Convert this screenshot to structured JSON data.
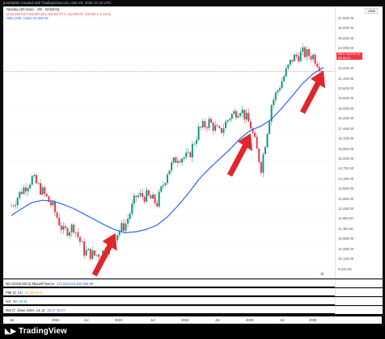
{
  "topbar": {
    "text": "jrosst5834 created with TradingView.com, Mar 20, 2026 17:12 UTC"
  },
  "legend": {
    "title": "Nasdaq 100 Index · 1W · NASDAQ",
    "ohlc": "O 24,267.04  H 24,307.53  L 24,022.77  C 24,076.70  −278.00 (−1.14%)",
    "sma": "SMA (200, close)  24,360.05"
  },
  "axis": {
    "currency": "USD",
    "ticks": [
      "27,000.00",
      "26,000.00",
      "25,000.00",
      "24,000.00",
      "23,000.00",
      "22,000.00",
      "21,400.00",
      "20,600.00",
      "19,800.00",
      "19,000.00",
      "18,200.00",
      "17,450.00",
      "16,700.00",
      "15,950.00",
      "15,200.00",
      "14,750.00",
      "14,150.00",
      "13,550.00",
      "12,950.00",
      "12,450.00",
      "11,950.00",
      "11,450.00",
      "10,950.00",
      "10,490.00",
      "10,130.00",
      "9,610.00"
    ],
    "price_tag": {
      "label": "NDX",
      "value": "24,076.70",
      "sub": "04:18:11"
    }
  },
  "panes": [
    {
      "name": "M2 Global M2 by MiguelFinance",
      "value": "119,640,512,450,256.96"
    },
    {
      "name": "PMI (3, 14)",
      "value": "52.48  52.48"
    },
    {
      "name": "Vol",
      "value": "857.49 M"
    },
    {
      "name": "RSI (7, close, EMA, 14, 2)",
      "value": "35.07  35.07"
    }
  ],
  "xaxis": {
    "labels": [
      "Jul",
      "2022",
      "Jul",
      "2023",
      "Jul",
      "2024",
      "Jul",
      "2025",
      "Jul",
      "2026"
    ]
  },
  "footer": {
    "brand": "TradingView"
  },
  "colors": {
    "sma": "#2962ff",
    "up": "#089981",
    "down": "#f23645",
    "arrow": "#e0262a"
  },
  "chart_data": {
    "type": "line",
    "title": "Nasdaq 100 Index · 1W · NASDAQ",
    "x": [
      "2021-06",
      "2021-09",
      "2021-11",
      "2022-01",
      "2022-03",
      "2022-05",
      "2022-07",
      "2022-09",
      "2022-10",
      "2022-12",
      "2023-02",
      "2023-04",
      "2023-06",
      "2023-08",
      "2023-10",
      "2023-12",
      "2024-02",
      "2024-04",
      "2024-06",
      "2024-07",
      "2024-09",
      "2024-11",
      "2025-01",
      "2025-03",
      "2025-04",
      "2025-06",
      "2025-08",
      "2025-10",
      "2025-12",
      "2026-02",
      "2026-03"
    ],
    "series": [
      {
        "name": "Nasdaq 100 Index",
        "values": [
          14300,
          15400,
          16300,
          15300,
          14200,
          12400,
          12800,
          11000,
          10700,
          11000,
          12200,
          13000,
          15000,
          15000,
          14500,
          16800,
          17900,
          17800,
          19800,
          20400,
          19600,
          20800,
          21400,
          20100,
          17100,
          21700,
          23400,
          25000,
          25400,
          25200,
          24077
        ]
      },
      {
        "name": "SMA (200, close)",
        "values": [
          13600,
          14100,
          14550,
          14700,
          14650,
          14400,
          14100,
          13700,
          13300,
          12900,
          12550,
          12350,
          12420,
          12600,
          12900,
          13500,
          14300,
          15200,
          16200,
          17000,
          17700,
          18400,
          19200,
          19800,
          20100,
          20600,
          21400,
          22300,
          23200,
          23900,
          24360
        ]
      }
    ],
    "ylim": [
      9610,
      27500
    ]
  }
}
